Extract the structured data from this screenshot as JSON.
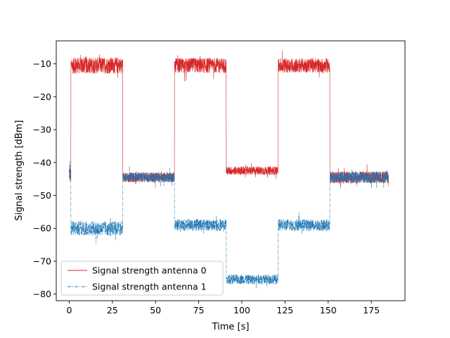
{
  "chart_data": {
    "type": "line",
    "title": "",
    "xlabel": "Time [s]",
    "ylabel": "Signal strength [dBm]",
    "xlim": [
      -7.5,
      194.5
    ],
    "ylim": [
      -82,
      -3
    ],
    "xticks": [
      0,
      25,
      50,
      75,
      100,
      125,
      150,
      175
    ],
    "yticks": [
      -80,
      -70,
      -60,
      -50,
      -40,
      -30,
      -20,
      -10
    ],
    "xtick_labels": [
      "0",
      "25",
      "50",
      "75",
      "100",
      "125",
      "150",
      "175"
    ],
    "ytick_labels": [
      "−80",
      "−70",
      "−60",
      "−50",
      "−40",
      "−30",
      "−20",
      "−10"
    ],
    "grid": false,
    "legend_position": "lower-left",
    "series": [
      {
        "name": "Signal strength antenna 0",
        "color": "#d62728",
        "style": "solid",
        "segments": [
          {
            "start": 0,
            "end": 1,
            "mean": -44,
            "noise": 2.5
          },
          {
            "start": 1,
            "end": 31,
            "mean": -10.5,
            "noise": 2.5
          },
          {
            "start": 31,
            "end": 61,
            "mean": -44.5,
            "noise": 1.5
          },
          {
            "start": 61,
            "end": 91,
            "mean": -10.5,
            "noise": 2.3
          },
          {
            "start": 91,
            "end": 121,
            "mean": -42.5,
            "noise": 1.3
          },
          {
            "start": 121,
            "end": 151,
            "mean": -10.5,
            "noise": 2.2
          },
          {
            "start": 151,
            "end": 185,
            "mean": -44.5,
            "noise": 1.8
          }
        ]
      },
      {
        "name": "Signal strength antenna 1",
        "color": "#1f77b4",
        "style": "dashdot",
        "segments": [
          {
            "start": 0,
            "end": 1,
            "mean": -42,
            "noise": 3.5
          },
          {
            "start": 1,
            "end": 31,
            "mean": -60,
            "noise": 2.2
          },
          {
            "start": 31,
            "end": 61,
            "mean": -44.5,
            "noise": 1.5
          },
          {
            "start": 61,
            "end": 91,
            "mean": -59,
            "noise": 1.8
          },
          {
            "start": 91,
            "end": 121,
            "mean": -75.5,
            "noise": 1.5
          },
          {
            "start": 121,
            "end": 151,
            "mean": -59,
            "noise": 1.8
          },
          {
            "start": 151,
            "end": 185,
            "mean": -44.5,
            "noise": 1.8
          }
        ]
      }
    ]
  }
}
